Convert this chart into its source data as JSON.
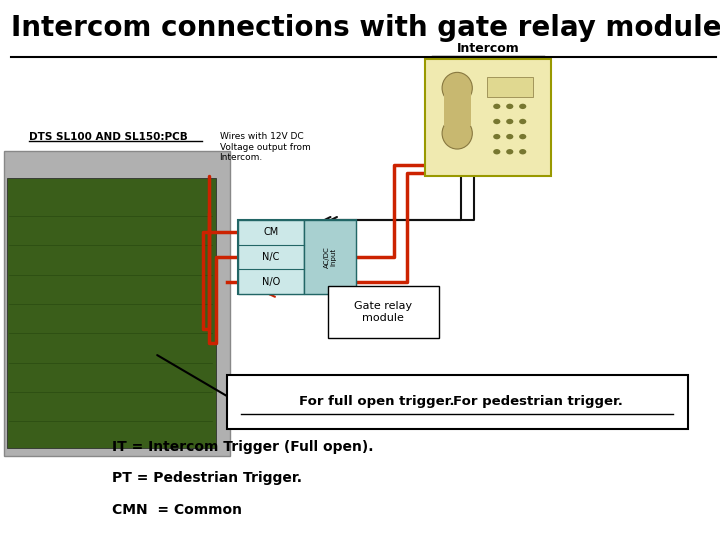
{
  "title": "Intercom connections with gate relay module.",
  "background_color": "#ffffff",
  "title_fontsize": 20,
  "bottom_labels": [
    "IT = Intercom Trigger (Full open).",
    "PT = Pedestrian Trigger.",
    "CMN  = Common"
  ],
  "intercom_label": "Intercom",
  "pcb_label": "DTS SL100 AND SL150:PCB",
  "wires_label": "Wires with 12V DC\nVoltage output from\nIntercom.",
  "relay_label": "Gate relay\nmodule",
  "trigger_text1": "For full open trigger.",
  "trigger_text2": "For pedestrian trigger.",
  "module_color": "#b0d8d8",
  "intercom_color": "#f0eab0",
  "relay_labels": [
    "CM",
    "N/C",
    "N/O"
  ],
  "acdc_label": "AC/DC\nInput",
  "wire_red": "#cc2200",
  "wire_black": "#111111"
}
